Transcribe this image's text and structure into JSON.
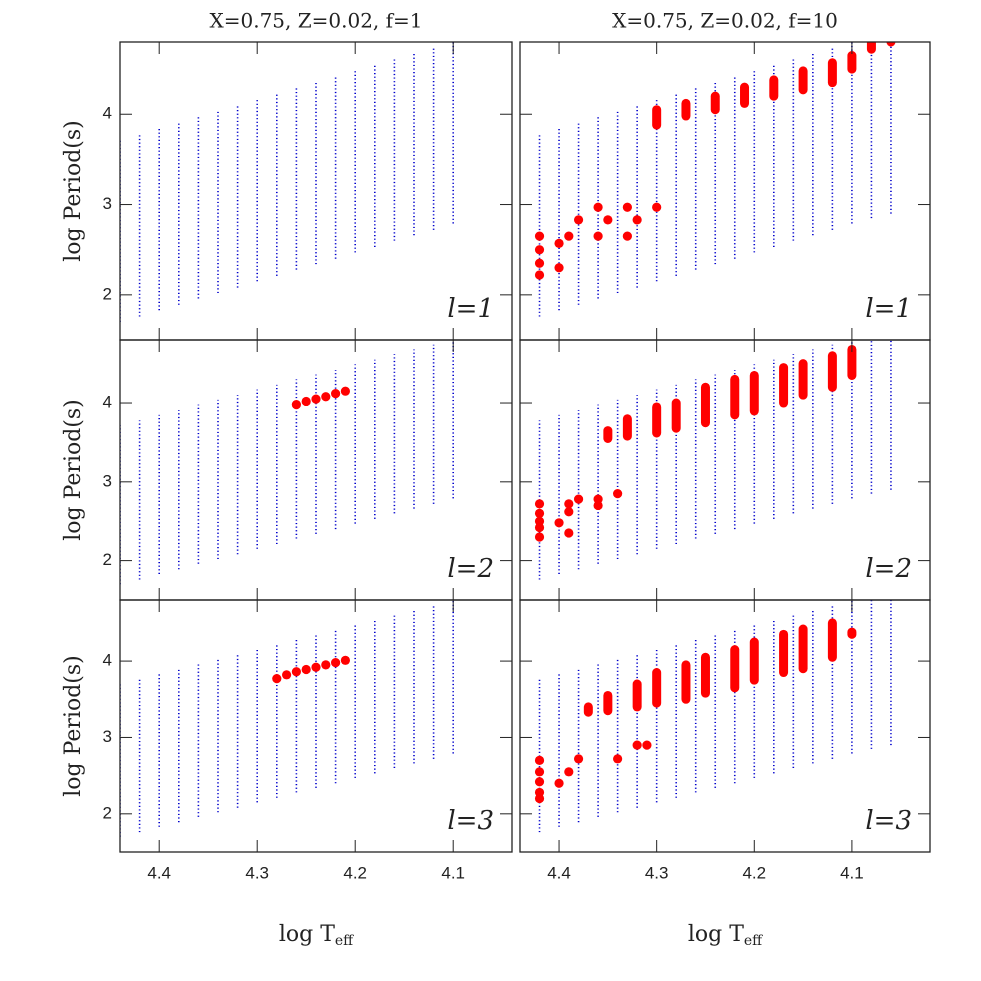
{
  "chart_data": [
    {
      "type": "range",
      "title": "X=0.75, Z=0.02, f=1",
      "ylabel": "log Period(s)",
      "annotation": "l=1",
      "xlim": [
        4.44,
        4.04
      ],
      "ylim": [
        1.5,
        4.8
      ],
      "xticks": [
        4.4,
        4.3,
        4.2,
        4.1
      ],
      "yticks": [
        2,
        3,
        4
      ],
      "series": [
        {
          "color": "#0000cc",
          "x": [
            4.44,
            4.42,
            4.4,
            4.38,
            4.36,
            4.34,
            4.32,
            4.3,
            4.28,
            4.26,
            4.24,
            4.22,
            4.2,
            4.18,
            4.16,
            4.14,
            4.12,
            4.1
          ],
          "low": [
            1.7,
            1.76,
            1.83,
            1.89,
            1.96,
            2.02,
            2.08,
            2.15,
            2.21,
            2.28,
            2.34,
            2.4,
            2.47,
            2.53,
            2.6,
            2.66,
            2.72,
            2.79
          ],
          "high": [
            3.72,
            3.78,
            3.85,
            3.91,
            3.98,
            4.04,
            4.1,
            4.17,
            4.23,
            4.3,
            4.36,
            4.42,
            4.49,
            4.55,
            4.62,
            4.68,
            4.74,
            4.8
          ]
        }
      ]
    },
    {
      "type": "range",
      "title": "X=0.75, Z=0.02, f=10",
      "annotation": "l=1",
      "xlim": [
        4.44,
        4.02
      ],
      "ylim": [
        1.5,
        4.8
      ],
      "xticks": [
        4.4,
        4.3,
        4.2,
        4.1
      ],
      "yticks": [
        2,
        3,
        4
      ],
      "series": [
        {
          "color": "#0000cc",
          "x": [
            4.42,
            4.4,
            4.38,
            4.36,
            4.34,
            4.32,
            4.3,
            4.28,
            4.26,
            4.24,
            4.22,
            4.2,
            4.18,
            4.16,
            4.14,
            4.12,
            4.1,
            4.08,
            4.06
          ],
          "low": [
            1.76,
            1.83,
            1.89,
            1.96,
            2.02,
            2.08,
            2.15,
            2.21,
            2.28,
            2.34,
            2.4,
            2.47,
            2.53,
            2.6,
            2.66,
            2.72,
            2.79,
            2.85,
            2.9
          ],
          "high": [
            3.78,
            3.85,
            3.91,
            3.98,
            4.04,
            4.1,
            4.17,
            4.23,
            4.3,
            4.36,
            4.42,
            4.49,
            4.55,
            4.62,
            4.68,
            4.74,
            4.8,
            4.8,
            4.8
          ]
        },
        {
          "color": "#ff0000",
          "x": [
            4.3,
            4.27,
            4.24,
            4.21,
            4.18,
            4.15,
            4.12,
            4.1,
            4.08,
            4.06
          ],
          "low": [
            3.88,
            3.98,
            4.05,
            4.12,
            4.2,
            4.27,
            4.35,
            4.5,
            4.72,
            4.8
          ],
          "high": [
            4.05,
            4.12,
            4.2,
            4.3,
            4.38,
            4.48,
            4.57,
            4.65,
            4.8,
            4.82
          ]
        },
        {
          "color": "#ff0000",
          "x": [
            4.36,
            4.33,
            4.3,
            4.38,
            4.35,
            4.32,
            4.42,
            4.39,
            4.36,
            4.33,
            4.42,
            4.4,
            4.42,
            4.4,
            4.42
          ],
          "y": [
            2.97,
            2.97,
            2.97,
            2.83,
            2.83,
            2.83,
            2.65,
            2.65,
            2.65,
            2.65,
            2.5,
            2.57,
            2.35,
            2.3,
            2.22
          ]
        }
      ]
    },
    {
      "type": "range",
      "ylabel": "log Period(s)",
      "annotation": "l=2",
      "xlim": [
        4.44,
        4.04
      ],
      "ylim": [
        1.5,
        4.8
      ],
      "xticks": [
        4.4,
        4.3,
        4.2,
        4.1
      ],
      "yticks": [
        2,
        3,
        4
      ],
      "series": [
        {
          "color": "#0000cc",
          "x": [
            4.44,
            4.42,
            4.4,
            4.38,
            4.36,
            4.34,
            4.32,
            4.3,
            4.28,
            4.26,
            4.24,
            4.22,
            4.2,
            4.18,
            4.16,
            4.14,
            4.12,
            4.1
          ],
          "low": [
            1.7,
            1.76,
            1.83,
            1.89,
            1.96,
            2.02,
            2.08,
            2.15,
            2.21,
            2.28,
            2.34,
            2.4,
            2.47,
            2.53,
            2.6,
            2.66,
            2.72,
            2.79
          ],
          "high": [
            3.72,
            3.78,
            3.85,
            3.91,
            3.98,
            4.04,
            4.1,
            4.17,
            4.23,
            4.3,
            4.36,
            4.42,
            4.49,
            4.55,
            4.62,
            4.68,
            4.74,
            4.8
          ]
        },
        {
          "color": "#ff0000",
          "x": [
            4.26,
            4.25,
            4.24,
            4.23,
            4.22,
            4.21
          ],
          "y": [
            3.98,
            4.02,
            4.05,
            4.08,
            4.12,
            4.15
          ]
        }
      ]
    },
    {
      "type": "range",
      "annotation": "l=2",
      "xlim": [
        4.44,
        4.02
      ],
      "ylim": [
        1.5,
        4.8
      ],
      "xticks": [
        4.4,
        4.3,
        4.2,
        4.1
      ],
      "yticks": [
        2,
        3,
        4
      ],
      "series": [
        {
          "color": "#0000cc",
          "x": [
            4.42,
            4.4,
            4.38,
            4.36,
            4.34,
            4.32,
            4.3,
            4.28,
            4.26,
            4.24,
            4.22,
            4.2,
            4.18,
            4.16,
            4.14,
            4.12,
            4.1,
            4.08,
            4.06
          ],
          "low": [
            1.76,
            1.83,
            1.89,
            1.96,
            2.02,
            2.08,
            2.15,
            2.21,
            2.28,
            2.34,
            2.4,
            2.47,
            2.53,
            2.6,
            2.66,
            2.72,
            2.79,
            2.85,
            2.9
          ],
          "high": [
            3.78,
            3.85,
            3.91,
            3.98,
            4.04,
            4.1,
            4.17,
            4.23,
            4.3,
            4.36,
            4.42,
            4.49,
            4.55,
            4.62,
            4.68,
            4.74,
            4.8,
            4.8,
            4.8
          ]
        },
        {
          "color": "#ff0000",
          "x": [
            4.35,
            4.33,
            4.3,
            4.28,
            4.25,
            4.22,
            4.2,
            4.17,
            4.15,
            4.12,
            4.1
          ],
          "low": [
            3.55,
            3.58,
            3.62,
            3.68,
            3.75,
            3.85,
            3.9,
            4.0,
            4.1,
            4.2,
            4.35
          ],
          "high": [
            3.65,
            3.8,
            3.95,
            4.0,
            4.2,
            4.3,
            4.35,
            4.45,
            4.5,
            4.6,
            4.68
          ]
        },
        {
          "color": "#ff0000",
          "x": [
            4.34,
            4.38,
            4.36,
            4.42,
            4.39,
            4.36,
            4.42,
            4.39,
            4.42,
            4.4,
            4.42,
            4.39,
            4.42
          ],
          "y": [
            2.85,
            2.78,
            2.78,
            2.72,
            2.72,
            2.7,
            2.6,
            2.62,
            2.5,
            2.48,
            2.42,
            2.35,
            2.3
          ]
        }
      ]
    },
    {
      "type": "range",
      "ylabel": "log Period(s)",
      "xlabel": {
        "text": "log T",
        "subscript": "eff"
      },
      "annotation": "l=3",
      "xlim": [
        4.44,
        4.04
      ],
      "ylim": [
        1.5,
        4.8
      ],
      "xticks": [
        4.4,
        4.3,
        4.2,
        4.1
      ],
      "yticks": [
        2,
        3,
        4
      ],
      "series": [
        {
          "color": "#0000cc",
          "x": [
            4.44,
            4.42,
            4.4,
            4.38,
            4.36,
            4.34,
            4.32,
            4.3,
            4.28,
            4.26,
            4.24,
            4.22,
            4.2,
            4.18,
            4.16,
            4.14,
            4.12,
            4.1
          ],
          "low": [
            1.7,
            1.76,
            1.83,
            1.89,
            1.96,
            2.02,
            2.08,
            2.15,
            2.21,
            2.28,
            2.34,
            2.4,
            2.47,
            2.53,
            2.6,
            2.66,
            2.72,
            2.79
          ],
          "high": [
            3.72,
            3.78,
            3.85,
            3.91,
            3.98,
            4.04,
            4.1,
            4.17,
            4.23,
            4.3,
            4.36,
            4.42,
            4.49,
            4.55,
            4.62,
            4.68,
            4.74,
            4.8
          ]
        },
        {
          "color": "#ff0000",
          "x": [
            4.28,
            4.27,
            4.26,
            4.25,
            4.24,
            4.23,
            4.22,
            4.21
          ],
          "y": [
            3.77,
            3.82,
            3.86,
            3.89,
            3.92,
            3.95,
            3.98,
            4.01
          ]
        }
      ]
    },
    {
      "type": "range",
      "xlabel": {
        "text": "log T",
        "subscript": "eff"
      },
      "annotation": "l=3",
      "xlim": [
        4.44,
        4.02
      ],
      "ylim": [
        1.5,
        4.8
      ],
      "xticks": [
        4.4,
        4.3,
        4.2,
        4.1
      ],
      "yticks": [
        2,
        3,
        4
      ],
      "series": [
        {
          "color": "#0000cc",
          "x": [
            4.42,
            4.4,
            4.38,
            4.36,
            4.34,
            4.32,
            4.3,
            4.28,
            4.26,
            4.24,
            4.22,
            4.2,
            4.18,
            4.16,
            4.14,
            4.12,
            4.1,
            4.08,
            4.06
          ],
          "low": [
            1.76,
            1.83,
            1.89,
            1.96,
            2.02,
            2.08,
            2.15,
            2.21,
            2.28,
            2.34,
            2.4,
            2.47,
            2.53,
            2.6,
            2.66,
            2.72,
            2.79,
            2.85,
            2.9
          ],
          "high": [
            3.78,
            3.85,
            3.91,
            3.98,
            4.04,
            4.1,
            4.17,
            4.23,
            4.3,
            4.36,
            4.42,
            4.49,
            4.55,
            4.62,
            4.68,
            4.74,
            4.8,
            4.8,
            4.8
          ]
        },
        {
          "color": "#ff0000",
          "x": [
            4.37,
            4.35,
            4.32,
            4.3,
            4.27,
            4.25,
            4.22,
            4.2,
            4.17,
            4.15,
            4.12,
            4.1
          ],
          "low": [
            3.33,
            3.35,
            3.4,
            3.45,
            3.5,
            3.58,
            3.65,
            3.75,
            3.85,
            3.9,
            4.05,
            4.35
          ],
          "high": [
            3.4,
            3.55,
            3.7,
            3.85,
            3.95,
            4.05,
            4.15,
            4.25,
            4.35,
            4.42,
            4.5,
            4.38
          ]
        },
        {
          "color": "#ff0000",
          "x": [
            4.32,
            4.31,
            4.42,
            4.38,
            4.34,
            4.42,
            4.39,
            4.42,
            4.4,
            4.42,
            4.42
          ],
          "y": [
            2.9,
            2.9,
            2.7,
            2.72,
            2.72,
            2.55,
            2.55,
            2.42,
            2.4,
            2.28,
            2.2
          ]
        }
      ]
    }
  ]
}
